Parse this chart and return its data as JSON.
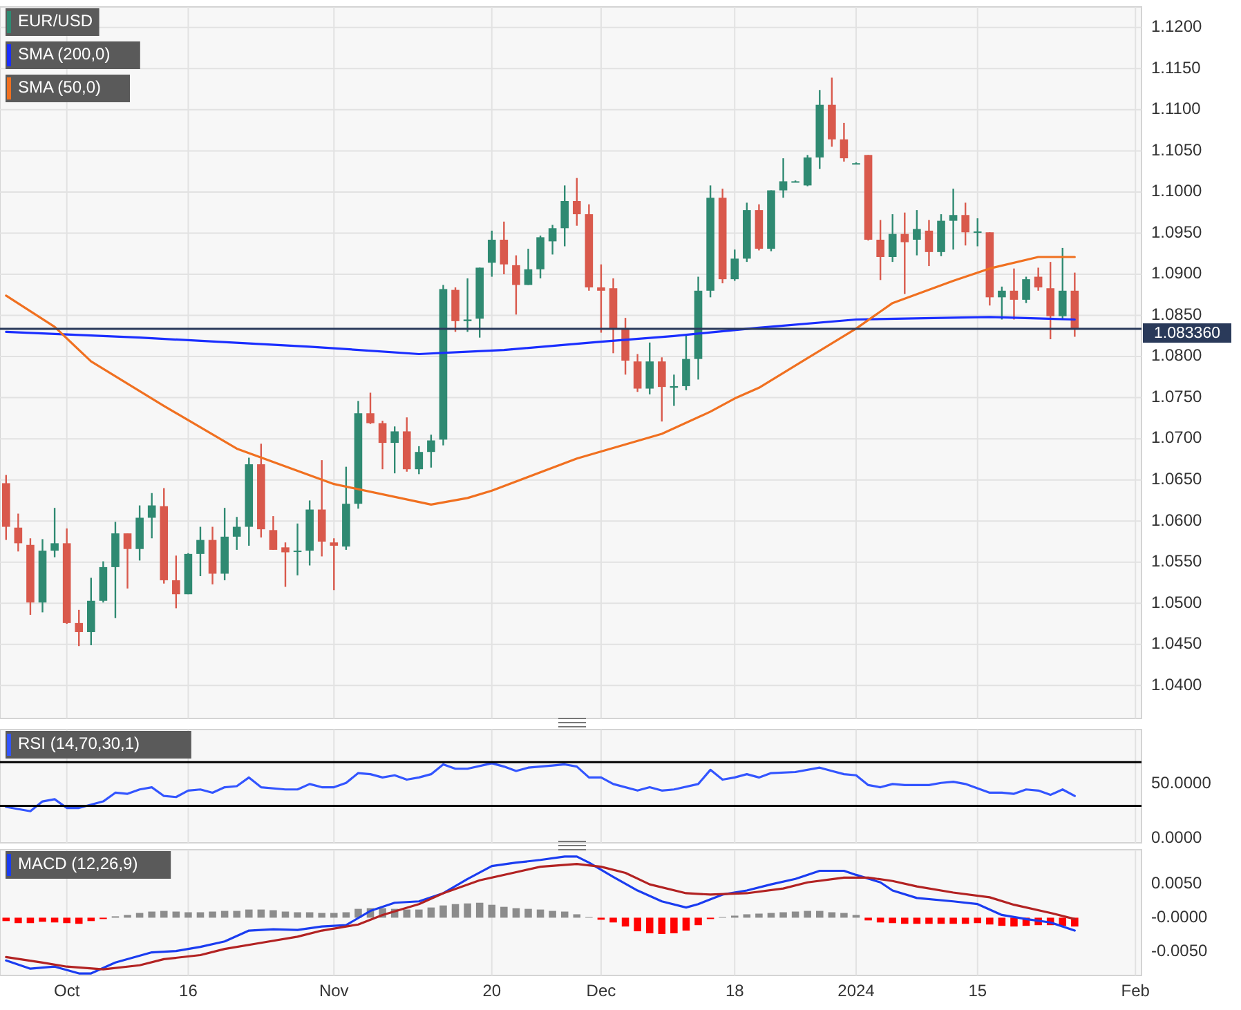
{
  "chart_data": [
    {
      "type": "candlestick",
      "categories": [
        null,
        null,
        null,
        null,
        null,
        null,
        null,
        null,
        null,
        null,
        null,
        null,
        null,
        null,
        null,
        null,
        null,
        null,
        null,
        null,
        null,
        null,
        null,
        null,
        null,
        null,
        null,
        null,
        null,
        null,
        null,
        null,
        null,
        null,
        null,
        null,
        null,
        null,
        null,
        null,
        null,
        null,
        null,
        null,
        null,
        null,
        null,
        null,
        null,
        null,
        null,
        null,
        null,
        null,
        null,
        null,
        null,
        null,
        null,
        null,
        null,
        null,
        null,
        null,
        null,
        null,
        null,
        null,
        null,
        null,
        null,
        null,
        null,
        null,
        null,
        null,
        null,
        null,
        null,
        null,
        null,
        null,
        null,
        null,
        null,
        null,
        null,
        null,
        null,
        null,
        null,
        null,
        null,
        null
      ],
      "ylim": [
        1.036,
        1.1225
      ],
      "yticks": [
        {
          "value": 1.04,
          "label": "1.0400"
        },
        {
          "value": 1.045,
          "label": "1.0450"
        },
        {
          "value": 1.05,
          "label": "1.0500"
        },
        {
          "value": 1.055,
          "label": "1.0550"
        },
        {
          "value": 1.06,
          "label": "1.0600"
        },
        {
          "value": 1.065,
          "label": "1.0650"
        },
        {
          "value": 1.07,
          "label": "1.0700"
        },
        {
          "value": 1.075,
          "label": "1.0750"
        },
        {
          "value": 1.08,
          "label": "1.0800"
        },
        {
          "value": 1.085,
          "label": "1.0850"
        },
        {
          "value": 1.09,
          "label": "1.0900"
        },
        {
          "value": 1.095,
          "label": "1.0950"
        },
        {
          "value": 1.1,
          "label": "1.1000"
        },
        {
          "value": 1.105,
          "label": "1.1050"
        },
        {
          "value": 1.11,
          "label": "1.1100"
        },
        {
          "value": 1.115,
          "label": "1.1150"
        },
        {
          "value": 1.12,
          "label": "1.1200"
        }
      ],
      "grid": true,
      "legend": "top left",
      "tick_labels": "y",
      "ref_lines": [
        {
          "axis": "y",
          "value": 1.08336,
          "label": "1.083360",
          "color": "#2a3a5a"
        }
      ],
      "series": [
        {
          "name": "EUR/USD",
          "color": "#2f8a72",
          "colors": [
            "#d9594c",
            "#d9594c",
            "#d9594c",
            "#2f8a72",
            "#2f8a72",
            "#d9594c",
            "#d9594c",
            "#2f8a72",
            "#2f8a72",
            "#2f8a72",
            "#d9594c",
            "#2f8a72",
            "#2f8a72",
            "#d9594c",
            "#d9594c",
            "#2f8a72",
            "#2f8a72",
            "#d9594c",
            "#2f8a72",
            "#2f8a72",
            "#2f8a72",
            "#d9594c",
            "#d9594c",
            "#d9594c",
            "#2f8a72",
            "#2f8a72",
            "#d9594c",
            "#d9594c",
            "#2f8a72",
            "#2f8a72",
            "#d9594c",
            "#d9594c",
            "#2f8a72",
            "#d9594c",
            "#2f8a72",
            "#2f8a72",
            "#2f8a72",
            "#d9594c",
            "#2f8a72",
            "#2f8a72",
            "#2f8a72",
            "#d9594c",
            "#d9594c",
            "#2f8a72",
            "#2f8a72",
            "#2f8a72",
            "#2f8a72",
            "#d9594c",
            "#d9594c",
            "#d9594c",
            "#d9594c",
            "#d9594c",
            "#d9594c",
            "#2f8a72",
            "#d9594c",
            "#2f8a72",
            "#2f8a72",
            "#2f8a72",
            "#2f8a72",
            "#d9594c",
            "#2f8a72",
            "#2f8a72",
            "#d9594c",
            "#2f8a72",
            "#2f8a72",
            "#2f8a72",
            "#2f8a72",
            "#2f8a72",
            "#d9594c",
            "#d9594c",
            "#2f8a72",
            "#d9594c",
            "#d9594c",
            "#2f8a72",
            "#d9594c",
            "#2f8a72",
            "#d9594c",
            "#2f8a72",
            "#2f8a72",
            "#d9594c",
            "#2f8a72",
            "#d9594c",
            "#2f8a72",
            "#d9594c",
            "#2f8a72",
            "#d9594c",
            "#d9594c",
            "#2f8a72",
            "#d9594c",
            null,
            null,
            null,
            null,
            null
          ],
          "ohlc": [
            [
              1.0646,
              1.0656,
              1.0577,
              1.0593
            ],
            [
              1.0592,
              1.0609,
              1.0563,
              1.0573
            ],
            [
              1.0571,
              1.0579,
              1.0486,
              1.0501
            ],
            [
              1.0501,
              1.0578,
              1.0489,
              1.0564
            ],
            [
              1.0564,
              1.0616,
              1.0556,
              1.0573
            ],
            [
              1.0573,
              1.0591,
              1.0475,
              1.0476
            ],
            [
              1.0476,
              1.0492,
              1.0448,
              1.0465
            ],
            [
              1.0465,
              1.0531,
              1.0449,
              1.0503
            ],
            [
              1.0503,
              1.0551,
              1.0501,
              1.0544
            ],
            [
              1.0544,
              1.0599,
              1.0482,
              1.0585
            ],
            [
              1.0585,
              1.0585,
              1.0518,
              1.0566
            ],
            [
              1.0566,
              1.0619,
              1.0552,
              1.0604
            ],
            [
              1.0604,
              1.0634,
              1.0579,
              1.0619
            ],
            [
              1.0618,
              1.064,
              1.0524,
              1.0528
            ],
            [
              1.0528,
              1.0558,
              1.0494,
              1.0511
            ],
            [
              1.0511,
              1.0561,
              1.0511,
              1.056
            ],
            [
              1.056,
              1.0593,
              1.0533,
              1.0577
            ],
            [
              1.0577,
              1.0593,
              1.0523,
              1.0536
            ],
            [
              1.0536,
              1.0616,
              1.0528,
              1.0581
            ],
            [
              1.0581,
              1.0605,
              1.0565,
              1.0593
            ],
            [
              1.0593,
              1.0677,
              1.057,
              1.0669
            ],
            [
              1.0669,
              1.0694,
              1.058,
              1.059
            ],
            [
              1.0589,
              1.0606,
              1.0565,
              1.0565
            ],
            [
              1.0568,
              1.0574,
              1.052,
              1.0562
            ],
            [
              1.0563,
              1.0597,
              1.0534,
              1.0564
            ],
            [
              1.0564,
              1.0625,
              1.0546,
              1.0614
            ],
            [
              1.0614,
              1.0674,
              1.0557,
              1.0575
            ],
            [
              1.0574,
              1.0579,
              1.0516,
              1.057
            ],
            [
              1.0569,
              1.0666,
              1.0565,
              1.0621
            ],
            [
              1.0621,
              1.0746,
              1.0615,
              1.0731
            ],
            [
              1.0731,
              1.0756,
              1.0718,
              1.0719
            ],
            [
              1.0719,
              1.0722,
              1.0663,
              1.0695
            ],
            [
              1.0695,
              1.0715,
              1.0658,
              1.0709
            ],
            [
              1.0709,
              1.0726,
              1.066,
              1.0663
            ],
            [
              1.0663,
              1.0691,
              1.0657,
              1.0684
            ],
            [
              1.0684,
              1.0705,
              1.0665,
              1.0698
            ],
            [
              1.0699,
              1.0887,
              1.0692,
              1.0882
            ],
            [
              1.0881,
              1.0884,
              1.083,
              1.0843
            ],
            [
              1.0843,
              1.0895,
              1.083,
              1.0845
            ],
            [
              1.0846,
              1.0908,
              1.0823,
              1.0908
            ],
            [
              1.0914,
              1.0953,
              1.0897,
              1.0942
            ],
            [
              1.0942,
              1.0964,
              1.09,
              1.0912
            ],
            [
              1.0911,
              1.0923,
              1.0851,
              1.0887
            ],
            [
              1.0887,
              1.0931,
              1.0887,
              1.0906
            ],
            [
              1.0906,
              1.0947,
              1.0895,
              1.0945
            ],
            [
              1.094,
              1.096,
              1.0924,
              1.0956
            ],
            [
              1.0956,
              1.1008,
              1.0934,
              1.0989
            ],
            [
              1.0989,
              1.1017,
              1.0959,
              1.0973
            ],
            [
              1.0973,
              1.0985,
              1.088,
              1.0884
            ],
            [
              1.0884,
              1.0912,
              1.0829,
              1.088
            ],
            [
              1.0883,
              1.0895,
              1.0804,
              1.0833
            ],
            [
              1.0833,
              1.0847,
              1.0778,
              1.0795
            ],
            [
              1.0794,
              1.0803,
              1.0757,
              1.0761
            ],
            [
              1.0761,
              1.0817,
              1.0754,
              1.0794
            ],
            [
              1.0794,
              1.0799,
              1.0721,
              1.0763
            ],
            [
              1.0762,
              1.0778,
              1.074,
              1.0764
            ],
            [
              1.0764,
              1.0827,
              1.0759,
              1.0797
            ],
            [
              1.0797,
              1.0897,
              1.0772,
              1.088
            ],
            [
              1.088,
              1.1008,
              1.0872,
              1.0993
            ],
            [
              1.0993,
              1.1004,
              1.0889,
              1.0894
            ],
            [
              1.0894,
              1.093,
              1.0892,
              1.0919
            ],
            [
              1.0919,
              1.0987,
              1.0915,
              1.0978
            ],
            [
              1.0978,
              1.0985,
              1.0929,
              1.0931
            ],
            [
              1.0931,
              1.1002,
              1.0928,
              1.1002
            ],
            [
              1.1002,
              1.1041,
              1.0993,
              1.1013
            ],
            [
              1.1013,
              1.1014,
              1.1012,
              1.1013
            ],
            [
              1.1008,
              1.1045,
              1.1007,
              1.1042
            ],
            [
              1.1042,
              1.1124,
              1.1028,
              1.1106
            ],
            [
              1.1106,
              1.1139,
              1.1055,
              1.1064
            ],
            [
              1.1064,
              1.1084,
              1.1037,
              1.1041
            ],
            [
              1.1035,
              1.1036,
              1.1034,
              1.1035
            ],
            [
              1.1045,
              1.1045,
              1.0941,
              1.0942
            ],
            [
              1.0942,
              1.0966,
              1.0893,
              1.0921
            ],
            [
              1.0921,
              1.0973,
              1.0915,
              1.0949
            ],
            [
              1.0949,
              1.0975,
              1.0876,
              1.0939
            ],
            [
              1.0942,
              1.0978,
              1.0923,
              1.0955
            ],
            [
              1.0953,
              1.0966,
              1.091,
              1.0927
            ],
            [
              1.0927,
              1.0973,
              1.0922,
              1.0965
            ],
            [
              1.0965,
              1.1004,
              1.093,
              1.0972
            ],
            [
              1.0972,
              1.0987,
              1.0935,
              1.0951
            ],
            [
              1.0951,
              1.0968,
              1.0934,
              1.0952
            ],
            [
              1.0951,
              1.0951,
              1.0862,
              1.0872
            ],
            [
              1.0872,
              1.0885,
              1.0845,
              1.088
            ],
            [
              1.088,
              1.0907,
              1.0845,
              1.0869
            ],
            [
              1.0869,
              1.0897,
              1.0865,
              1.0894
            ],
            [
              1.0897,
              1.0908,
              1.088,
              1.0884
            ],
            [
              1.0883,
              1.0915,
              1.0821,
              1.0849
            ],
            [
              1.0849,
              1.0932,
              1.0846,
              1.088
            ],
            [
              1.088,
              1.0902,
              1.0824,
              1.0834
            ],
            null,
            null,
            null,
            null,
            null
          ]
        },
        {
          "name": "SMA (200,0)",
          "type": "line",
          "color": "#1a2eff",
          "values": [
            1.083,
            null,
            null,
            null,
            null,
            null,
            null,
            null,
            null,
            null,
            null,
            1.0823,
            null,
            null,
            null,
            null,
            null,
            null,
            null,
            null,
            null,
            null,
            null,
            null,
            null,
            1.0812,
            null,
            null,
            null,
            null,
            null,
            null,
            null,
            null,
            1.0803,
            null,
            null,
            null,
            null,
            null,
            null,
            1.0808,
            null,
            null,
            null,
            null,
            null,
            null,
            null,
            1.0818,
            null,
            null,
            null,
            null,
            null,
            1.0825,
            null,
            null,
            null,
            null,
            null,
            null,
            1.0835,
            null,
            null,
            null,
            null,
            null,
            null,
            null,
            1.0845,
            null,
            null,
            null,
            null,
            null,
            null,
            null,
            null,
            null,
            null,
            1.0848,
            null,
            null,
            null,
            null,
            null,
            null,
            1.0845,
            null,
            null,
            null,
            null,
            null
          ]
        },
        {
          "name": "SMA (50,0)",
          "type": "line",
          "color": "#f07020",
          "values": [
            1.0874,
            null,
            null,
            null,
            1.0836,
            null,
            null,
            1.0794,
            null,
            null,
            null,
            null,
            null,
            1.074,
            null,
            null,
            null,
            null,
            null,
            1.0688,
            null,
            null,
            null,
            null,
            null,
            null,
            null,
            1.0645,
            null,
            null,
            null,
            null,
            null,
            null,
            null,
            1.062,
            null,
            null,
            1.0628,
            null,
            1.0637,
            null,
            null,
            null,
            null,
            null,
            null,
            1.0676,
            null,
            null,
            null,
            null,
            null,
            null,
            1.0706,
            null,
            null,
            null,
            1.0733,
            null,
            1.0749,
            null,
            1.0762,
            null,
            null,
            null,
            1.0798,
            null,
            null,
            null,
            1.0834,
            null,
            null,
            1.0865,
            null,
            null,
            null,
            null,
            1.0892,
            null,
            null,
            1.0907,
            null,
            null,
            null,
            1.0921,
            null,
            null,
            1.0921,
            null,
            null,
            null,
            null,
            null
          ]
        }
      ]
    },
    {
      "type": "line",
      "categories": [
        null,
        null,
        null,
        null,
        null,
        null,
        null,
        null,
        null,
        null,
        null,
        null,
        null,
        null,
        null,
        null,
        null,
        null,
        null,
        null,
        null,
        null,
        null,
        null,
        null,
        null,
        null,
        null,
        null,
        null,
        null,
        null,
        null,
        null,
        null,
        null,
        null,
        null,
        null,
        null,
        null,
        null,
        null,
        null,
        null,
        null,
        null,
        null,
        null,
        null,
        null,
        null,
        null,
        null,
        null,
        null,
        null,
        null,
        null,
        null,
        null,
        null,
        null,
        null,
        null,
        null,
        null,
        null,
        null,
        null,
        null,
        null,
        null,
        null,
        null,
        null,
        null,
        null,
        null,
        null,
        null,
        null,
        null,
        null,
        null,
        null,
        null,
        null,
        null,
        null,
        null,
        null,
        null,
        null
      ],
      "ylim": [
        -4,
        100
      ],
      "yticks": [
        {
          "value": 0,
          "label": "0.0000"
        },
        {
          "value": 50,
          "label": "50.0000"
        }
      ],
      "grid": "x",
      "legend": "top left",
      "tick_labels": "y",
      "ref_lines": [
        {
          "axis": "y",
          "value": 70,
          "color": "#000000"
        },
        {
          "axis": "y",
          "value": 30,
          "color": "#000000"
        }
      ],
      "series": [
        {
          "name": "RSI (14,70,30,1)",
          "color": "#3355ff",
          "values": [
            29,
            null,
            25,
            34,
            36,
            28,
            28,
            null,
            34,
            42,
            41,
            45,
            47,
            39,
            38,
            44,
            45,
            42,
            47,
            48,
            56,
            47,
            null,
            45,
            45,
            50,
            47,
            47,
            51,
            60,
            59,
            56,
            58,
            54,
            56,
            59,
            68,
            64,
            64,
            null,
            69,
            66,
            62,
            65,
            null,
            67,
            68,
            66,
            56,
            56,
            50,
            null,
            44,
            47,
            44,
            45,
            null,
            50,
            63,
            54,
            56,
            59,
            56,
            60,
            null,
            61,
            null,
            65,
            62,
            59,
            58,
            49,
            47,
            50,
            49,
            null,
            49,
            51,
            52,
            50,
            null,
            42,
            42,
            41,
            45,
            44,
            40,
            45,
            39,
            null,
            null,
            null,
            null,
            null
          ]
        }
      ]
    },
    {
      "type": "line",
      "categories": [
        null,
        null,
        null,
        null,
        null,
        "Oct",
        null,
        null,
        null,
        null,
        null,
        null,
        null,
        null,
        null,
        "16",
        null,
        null,
        null,
        null,
        null,
        null,
        null,
        null,
        null,
        null,
        null,
        "Nov",
        null,
        null,
        null,
        null,
        null,
        null,
        null,
        null,
        null,
        null,
        null,
        null,
        "20",
        null,
        null,
        null,
        null,
        null,
        null,
        null,
        null,
        "Dec",
        null,
        null,
        null,
        null,
        null,
        null,
        null,
        null,
        null,
        null,
        "18",
        null,
        null,
        null,
        null,
        null,
        null,
        null,
        null,
        null,
        "2024",
        null,
        null,
        null,
        null,
        null,
        null,
        null,
        null,
        null,
        "15",
        null,
        null,
        null,
        null,
        null,
        null,
        null,
        null,
        null,
        null,
        null,
        null,
        "Feb"
      ],
      "ylim": [
        -0.0085,
        0.01
      ],
      "yticks": [
        {
          "value": -0.005,
          "label": "-0.0050"
        },
        {
          "value": 0,
          "label": "-0.0000"
        },
        {
          "value": 0.005,
          "label": "0.0050"
        }
      ],
      "grid": "x",
      "legend": "top left",
      "series": [
        {
          "type": "bar",
          "color": "#8c8c8c",
          "values": [
            null,
            null,
            null,
            null,
            null,
            null,
            null,
            null,
            null,
            0.0002,
            0.0004,
            0.0007,
            0.0009,
            0.001,
            0.0009,
            0.0008,
            0.0008,
            0.0009,
            0.001,
            0.001,
            0.0012,
            0.0012,
            0.0011,
            0.0009,
            0.0008,
            0.0008,
            0.0007,
            0.0007,
            0.0008,
            0.0013,
            0.0014,
            0.0014,
            0.0013,
            0.0012,
            0.0012,
            0.0015,
            0.0018,
            0.002,
            0.0021,
            0.0022,
            0.0019,
            0.0016,
            0.0014,
            0.0013,
            0.0012,
            0.001,
            0.0009,
            0.0005,
            0.0001,
            null,
            null,
            null,
            null,
            null,
            null,
            null,
            null,
            null,
            null,
            0.0001,
            0.0003,
            0.0005,
            0.0006,
            0.0007,
            0.0008,
            0.0009,
            0.001,
            0.001,
            0.0008,
            0.0007,
            0.0004,
            null,
            null,
            null,
            null,
            null,
            null,
            null,
            null,
            null,
            null,
            null,
            null,
            null,
            null,
            null,
            null,
            null,
            null,
            null,
            null,
            null,
            null,
            null
          ]
        },
        {
          "type": "bar",
          "color": "#ff0000",
          "values": [
            -0.0005,
            -0.0008,
            -0.0008,
            -0.0006,
            -0.0007,
            -0.0008,
            -0.0009,
            -0.0005,
            -0.0002,
            null,
            null,
            null,
            null,
            null,
            null,
            null,
            null,
            null,
            null,
            null,
            null,
            null,
            null,
            null,
            null,
            null,
            null,
            null,
            null,
            null,
            null,
            null,
            null,
            null,
            null,
            null,
            null,
            null,
            null,
            null,
            null,
            null,
            null,
            null,
            null,
            null,
            null,
            null,
            null,
            -0.0003,
            -0.0007,
            -0.0013,
            -0.002,
            -0.0023,
            -0.0024,
            -0.0023,
            -0.0019,
            -0.0011,
            -0.0002,
            null,
            null,
            null,
            null,
            null,
            null,
            null,
            null,
            null,
            null,
            null,
            null,
            -0.0004,
            -0.0007,
            -0.0008,
            -0.0009,
            -0.0009,
            -0.0009,
            -0.0009,
            -0.0009,
            -0.0009,
            -0.0008,
            -0.001,
            -0.0012,
            -0.0013,
            -0.0012,
            -0.0011,
            -0.0011,
            -0.0012,
            -0.0013,
            null,
            null,
            null,
            null,
            null
          ]
        },
        {
          "name": "MACD (12,26,9)",
          "color": "#1a3cf0",
          "values": [
            -0.0063,
            null,
            -0.0075,
            null,
            -0.0072,
            null,
            -0.0082,
            -0.0082,
            null,
            -0.0066,
            null,
            null,
            -0.0051,
            null,
            -0.0049,
            null,
            -0.0043,
            null,
            -0.0035,
            null,
            -0.0019,
            null,
            -0.0017,
            null,
            -0.0018,
            null,
            -0.0013,
            null,
            -0.0011,
            null,
            0.001,
            null,
            0.0022,
            null,
            0.0024,
            null,
            0.0036,
            null,
            0.0057,
            null,
            0.0076,
            null,
            0.0081,
            null,
            0.0085,
            null,
            0.009,
            0.009,
            0.0081,
            null,
            0.006,
            null,
            0.004,
            null,
            0.0024,
            null,
            0.0015,
            0.002,
            null,
            0.0034,
            null,
            0.004,
            null,
            0.0049,
            null,
            0.0057,
            null,
            0.0069,
            null,
            0.0069,
            0.0063,
            null,
            0.0052,
            0.004,
            null,
            0.0029,
            null,
            null,
            0.0024,
            null,
            0.002,
            null,
            0.0004,
            null,
            -0.0002,
            null,
            -0.0007,
            null,
            -0.0019,
            null,
            null,
            null,
            null,
            null
          ]
        },
        {
          "color": "#b22222",
          "values": [
            -0.0058,
            null,
            null,
            -0.0066,
            null,
            -0.0072,
            null,
            null,
            -0.0076,
            null,
            null,
            -0.007,
            null,
            -0.0061,
            null,
            null,
            -0.0055,
            null,
            -0.0046,
            null,
            null,
            -0.0037,
            null,
            null,
            -0.0028,
            null,
            -0.0019,
            null,
            null,
            -0.001,
            null,
            0.0004,
            null,
            null,
            0.002,
            null,
            0.0036,
            null,
            null,
            0.0055,
            null,
            null,
            0.0067,
            null,
            0.0075,
            null,
            null,
            0.0079,
            null,
            0.0075,
            null,
            0.0066,
            null,
            0.0049,
            null,
            null,
            0.0036,
            null,
            0.0034,
            null,
            null,
            0.0036,
            null,
            null,
            0.0043,
            null,
            0.0052,
            null,
            null,
            0.0059,
            null,
            0.0059,
            null,
            0.0054,
            null,
            0.0046,
            null,
            null,
            0.0037,
            null,
            null,
            0.003,
            null,
            0.0019,
            null,
            null,
            0.0007,
            null,
            -0.0002,
            null,
            null,
            null,
            null,
            null
          ]
        }
      ]
    }
  ]
}
